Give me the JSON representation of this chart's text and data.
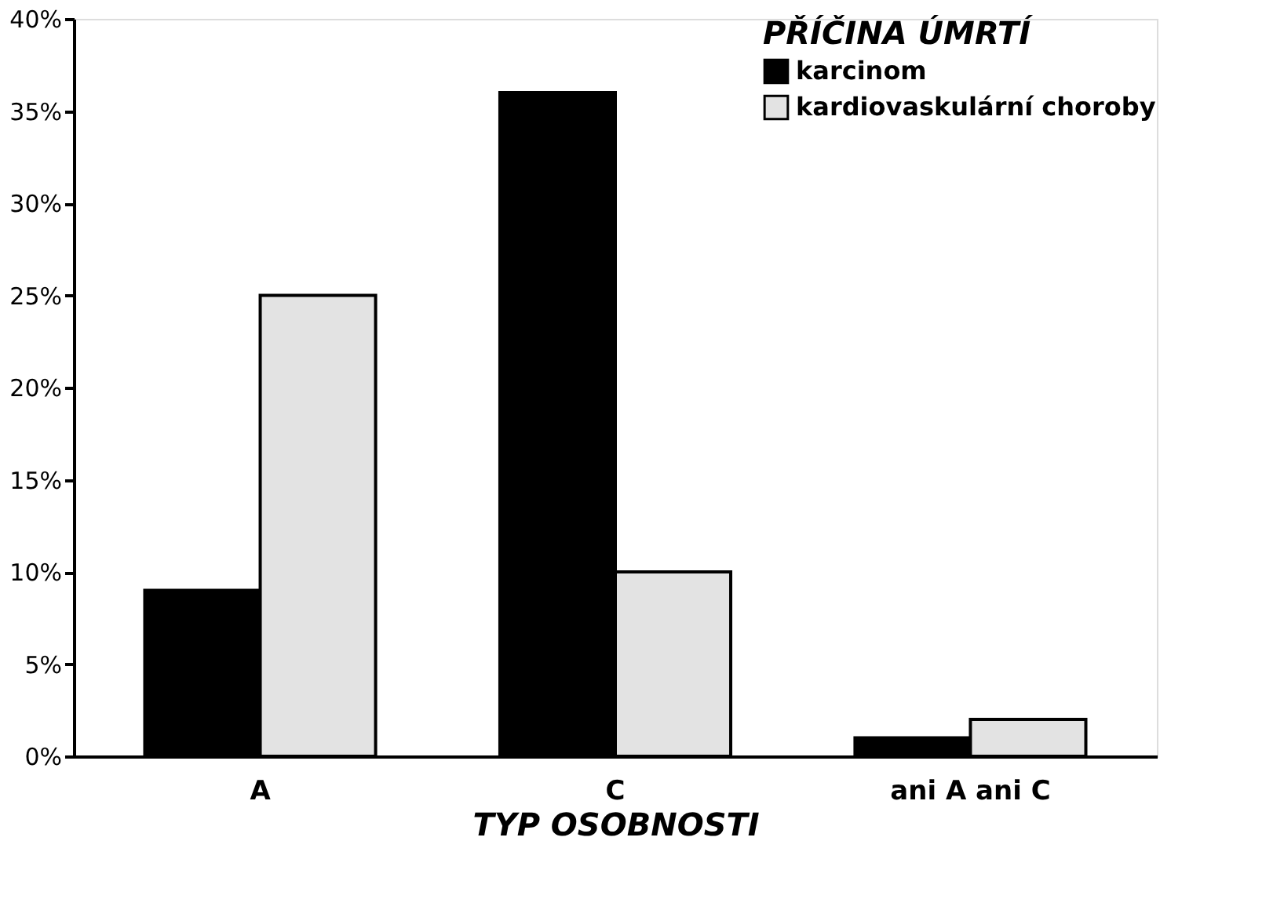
{
  "chart_data": {
    "type": "bar",
    "xlabel": "TYP OSOBNOSTI",
    "legend_title": "PŘÍČINA ÚMRTÍ",
    "legend": "top right",
    "grid": false,
    "categories": [
      "A",
      "C",
      "ani A ani C"
    ],
    "series": [
      {
        "name": "karcinom",
        "color": "#000000",
        "values": [
          9,
          36,
          1
        ]
      },
      {
        "name": "kardiovaskulární choroby",
        "color": "#e3e3e3",
        "values": [
          25,
          10,
          2
        ]
      }
    ],
    "ylim": [
      0,
      40
    ],
    "yticks": [
      {
        "value": 0,
        "label": "0%"
      },
      {
        "value": 5,
        "label": "5%"
      },
      {
        "value": 10,
        "label": "10%"
      },
      {
        "value": 15,
        "label": "15%"
      },
      {
        "value": 20,
        "label": "20%"
      },
      {
        "value": 25,
        "label": "25%"
      },
      {
        "value": 30,
        "label": "30%"
      },
      {
        "value": 35,
        "label": "35%"
      },
      {
        "value": 40,
        "label": "40%"
      }
    ]
  }
}
